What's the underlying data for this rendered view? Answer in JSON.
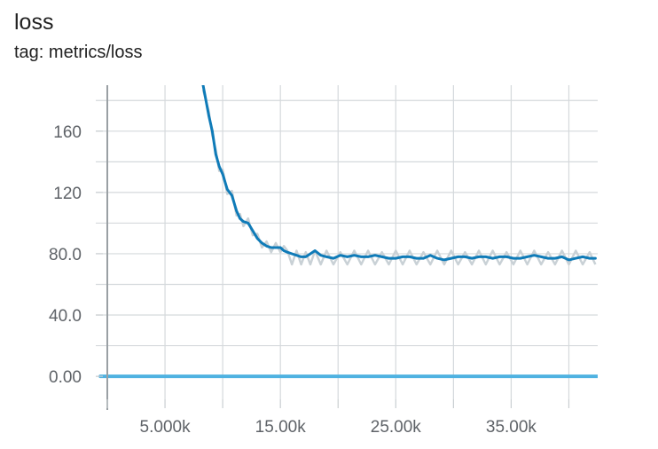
{
  "card": {
    "title": "loss",
    "tag": "tag: metrics/loss"
  },
  "chart_data": {
    "type": "line",
    "title": "loss",
    "subtitle": "tag: metrics/loss",
    "xlabel": "",
    "ylabel": "",
    "xlim": [
      -1000,
      42500
    ],
    "ylim": [
      -15,
      190
    ],
    "x_ticks": [
      5000,
      15000,
      25000,
      35000
    ],
    "x_tick_labels": [
      "5.000k",
      "15.00k",
      "25.00k",
      "35.00k"
    ],
    "y_ticks": [
      0,
      40,
      80,
      120,
      160
    ],
    "y_tick_labels": [
      "0.00",
      "40.0",
      "80.0",
      "120",
      "160"
    ],
    "grid": true,
    "series": [
      {
        "color": "#0f7bb8",
        "shadow_color": "#c9d1d6",
        "x": [
          8300,
          8800,
          9100,
          9400,
          9700,
          10000,
          10400,
          10800,
          11200,
          11500,
          11800,
          12200,
          12600,
          13000,
          13400,
          13800,
          14200,
          14600,
          15000,
          15300,
          15600,
          16000,
          16400,
          16800,
          17200,
          17600,
          18000,
          18500,
          19000,
          19600,
          20200,
          20800,
          21400,
          22000,
          22600,
          23200,
          23800,
          24400,
          25000,
          25600,
          26200,
          26800,
          27400,
          28000,
          28600,
          29200,
          29800,
          30400,
          31000,
          31600,
          32200,
          32800,
          33400,
          34000,
          34600,
          35200,
          35800,
          36400,
          37000,
          37600,
          38200,
          38800,
          39400,
          40000,
          40600,
          41200,
          41800,
          42300
        ],
        "values": [
          190,
          170,
          160,
          145,
          137,
          132,
          122,
          118,
          108,
          103,
          101,
          100,
          95,
          90,
          87,
          85,
          84,
          84,
          84,
          82,
          81,
          80,
          79,
          78,
          78,
          80,
          82,
          79,
          78,
          77,
          79,
          78,
          79,
          78,
          78,
          79,
          78,
          77,
          77,
          78,
          78,
          77,
          77,
          79,
          77,
          76,
          77,
          78,
          78,
          77,
          78,
          78,
          77,
          78,
          78,
          77,
          77,
          78,
          79,
          78,
          77,
          77,
          78,
          76,
          77,
          78,
          77,
          77
        ],
        "noise_low": [
          76,
          73,
          77,
          73,
          74,
          73
        ],
        "noise_high": [
          81,
          83,
          82,
          81,
          82,
          79
        ]
      },
      {
        "color": "#4fb2e1",
        "x": [
          -600,
          42500
        ],
        "values": [
          0,
          0
        ]
      }
    ]
  }
}
